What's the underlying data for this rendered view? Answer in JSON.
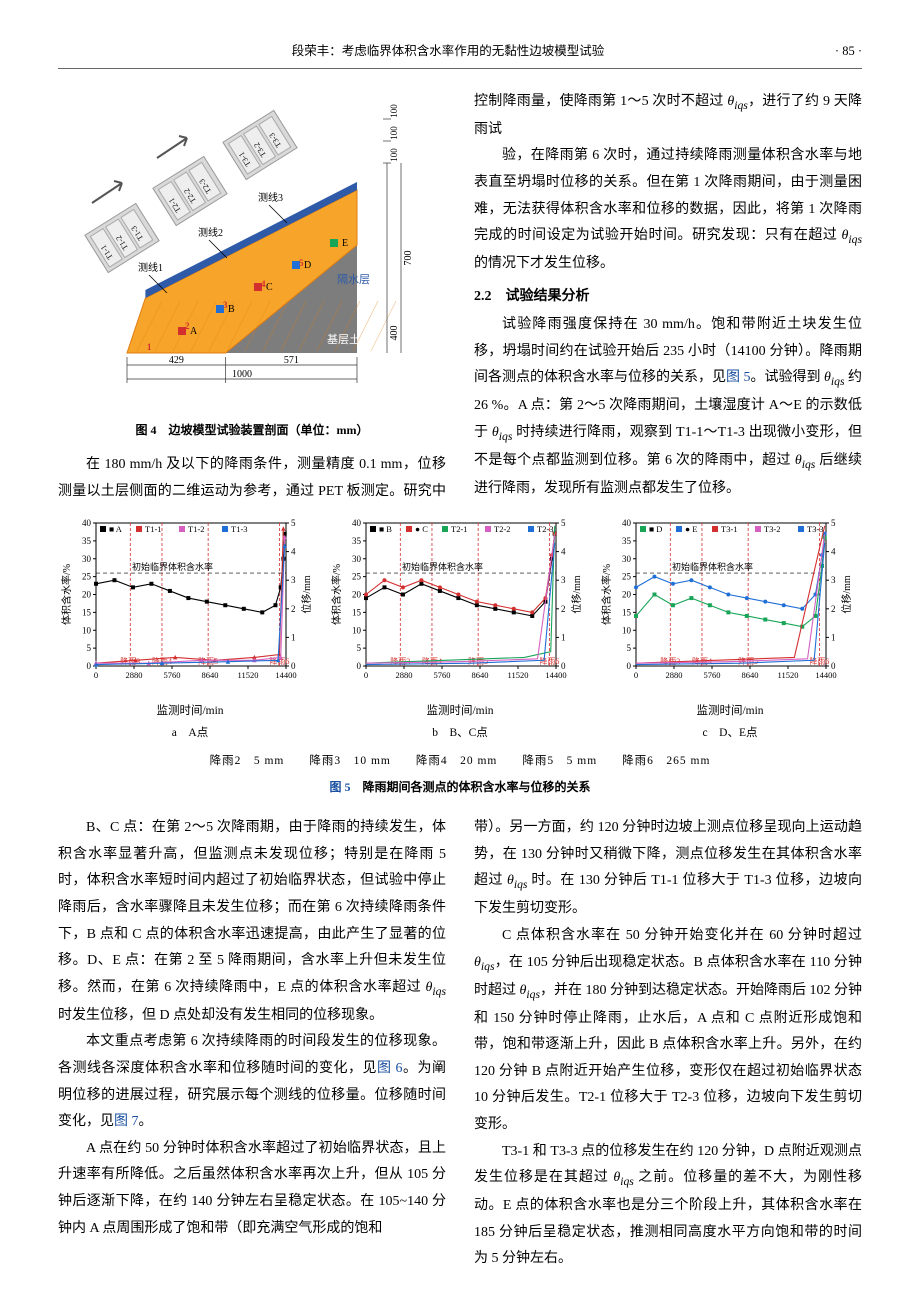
{
  "header": {
    "running_title": "段荣丰：考虑临界体积含水率作用的无黏性边坡模型试验",
    "page_num": "· 85 ·"
  },
  "fig4": {
    "caption": "图 4　边坡模型试验装置剖面（单位：mm）",
    "labels": {
      "t1": [
        "T1-1",
        "T1-2",
        "T1-3"
      ],
      "t2": [
        "T2-1",
        "T2-2",
        "T2-3"
      ],
      "t3": [
        "T3-1",
        "T3-2",
        "T3-3"
      ],
      "line1": "测线1",
      "line2": "测线2",
      "line3": "测线3",
      "layer": "隔水层",
      "base": "基层土体",
      "dim_429": "429",
      "dim_571": "571",
      "dim_1000": "1000",
      "dim_100a": "100",
      "dim_100b": "100",
      "dim_100c": "100",
      "dim_700": "700",
      "dim_400": "400",
      "pts": [
        "A",
        "B",
        "C",
        "D",
        "E"
      ],
      "nums": [
        "1",
        "2",
        "3",
        "4",
        "5"
      ]
    },
    "colors": {
      "slope_fill": "#f7a52a",
      "slope_hatch": "#e07d10",
      "base_fill": "#7d7d7d",
      "base_grad": "#5a5a5a",
      "box_fill": "#d9d9d9",
      "box_stroke": "#999",
      "imperv": "#2e5aa8",
      "arrow": "#555",
      "dim_line": "#333",
      "pt_green": "#18a558",
      "pt_blue": "#1f6fd6",
      "pt_red": "#d32f2f"
    }
  },
  "para1": "在 180 mm/h 及以下的降雨条件，测量精度 0.1 mm，位移测量以土层侧面的二维运动为参考，通过 PET 板测定。研究中控制降雨量，使降雨第 1～5 次时不超过 θ_iqs，进行了约 9 天降雨试",
  "para_r1": "验，在降雨第 6 次时，通过持续降雨测量体积含水率与地表直至坍塌时位移的关系。但在第 1 次降雨期间，由于测量困难，无法获得体积含水率和位移的数据，因此，将第 1 次降雨完成的时间设定为试验开始时间。研究发现：只有在超过 θ_iqs 的情况下才发生位移。",
  "sec22": "2.2　试验结果分析",
  "para_r2": "试验降雨强度保持在 30 mm/h。饱和带附近土块发生位移，坍塌时间约在试验开始后 235 小时（14100 分钟）。降雨期间各测点的体积含水率与位移的关系，见图 5。试验得到 θ_iqs 约 26 %。A 点：第 2～5 次降雨期间，土壤湿度计 A～E 的示数低于 θ_iqs 时持续进行降雨，观察到 T1-1～T1-3 出现微小变形，但不是每个点都监测到位移。第 6 次的降雨中，超过 θ_iqs 后继续进行降雨，发现所有监测点都发生了位移。",
  "fig5": {
    "caption": "图 5　降雨期间各测点的体积含水率与位移的关系",
    "legend_common": "降雨2　5 mm　　降雨3　10 mm　　降雨4　20 mm　　降雨5　5 mm　　降雨6　265 mm",
    "ylabel_left": "体积含水率/%",
    "ylabel_right": "位移/mm",
    "xlabel": "监测时间/min",
    "yl_ticks": [
      0,
      5,
      10,
      15,
      20,
      25,
      30,
      35,
      40
    ],
    "yr_ticks": [
      0,
      1,
      2,
      3,
      4,
      5
    ],
    "x_ticks": [
      0,
      2880,
      5760,
      8640,
      11520,
      14400
    ],
    "rain_labels": [
      "降雨3",
      "降雨4",
      "降雨5",
      "降雨6"
    ],
    "rain_x": [
      2600,
      5000,
      8500,
      13900
    ],
    "init_label": "初始临界体积含水率",
    "init_y": 26,
    "colors": {
      "axis": "#000",
      "grid": "#bbb",
      "rain_dash": "#d32f2f",
      "init_line": "#000",
      "sA": "#000",
      "sB": "#000",
      "sC": "#d32f2f",
      "sD": "#18a558",
      "sE": "#1f6fd6",
      "t1": "#d32f2f",
      "t2": "#d660c2",
      "t3": "#1f6fd6",
      "t21": "#18a558",
      "t22": "#d660c2",
      "t23": "#1f6fd6",
      "t31": "#d32f2f",
      "t32": "#d660c2",
      "t33": "#1f6fd6"
    },
    "panels": [
      {
        "sub": "a　A点",
        "legend": [
          [
            "■ A",
            "#000"
          ],
          [
            "T1-1",
            "#d32f2f"
          ],
          [
            "T1-2",
            "#d660c2"
          ],
          [
            "T1-3",
            "#1f6fd6"
          ]
        ],
        "series": [
          {
            "name": "A",
            "color": "#000",
            "marker": "sq",
            "pts": [
              [
                0,
                23
              ],
              [
                1400,
                24
              ],
              [
                2800,
                22
              ],
              [
                4200,
                23
              ],
              [
                5600,
                21
              ],
              [
                7000,
                19
              ],
              [
                8400,
                18
              ],
              [
                9800,
                17
              ],
              [
                11200,
                16
              ],
              [
                12600,
                15
              ],
              [
                13600,
                17
              ],
              [
                14000,
                22
              ],
              [
                14200,
                30
              ],
              [
                14300,
                37
              ]
            ]
          },
          {
            "name": "T1-1",
            "color": "#d32f2f",
            "marker": "tri",
            "axis": "r",
            "pts": [
              [
                0,
                0.1
              ],
              [
                3000,
                0.2
              ],
              [
                6000,
                0.3
              ],
              [
                9000,
                0.2
              ],
              [
                12000,
                0.3
              ],
              [
                13900,
                0.4
              ],
              [
                14200,
                4.8
              ]
            ]
          },
          {
            "name": "T1-2",
            "color": "#d660c2",
            "marker": "tri",
            "axis": "r",
            "pts": [
              [
                0,
                0.1
              ],
              [
                4000,
                0.1
              ],
              [
                8000,
                0.2
              ],
              [
                12000,
                0.2
              ],
              [
                14000,
                0.3
              ],
              [
                14300,
                4.5
              ]
            ]
          },
          {
            "name": "T1-3",
            "color": "#1f6fd6",
            "marker": "tri",
            "axis": "r",
            "pts": [
              [
                0,
                0.05
              ],
              [
                5000,
                0.1
              ],
              [
                10000,
                0.15
              ],
              [
                13800,
                0.2
              ],
              [
                14300,
                4.2
              ]
            ]
          }
        ]
      },
      {
        "sub": "b　B、C点",
        "legend": [
          [
            "■ B",
            "#000"
          ],
          [
            "● C",
            "#d32f2f"
          ],
          [
            "T2-1",
            "#18a558"
          ],
          [
            "T2-2",
            "#d660c2"
          ],
          [
            "T2-3",
            "#1f6fd6"
          ]
        ],
        "series": [
          {
            "name": "B",
            "color": "#000",
            "marker": "sq",
            "pts": [
              [
                0,
                19
              ],
              [
                1400,
                22
              ],
              [
                2800,
                20
              ],
              [
                4200,
                23
              ],
              [
                5600,
                21
              ],
              [
                7000,
                19
              ],
              [
                8400,
                17
              ],
              [
                9800,
                16
              ],
              [
                11200,
                15
              ],
              [
                12600,
                14
              ],
              [
                13600,
                18
              ],
              [
                14100,
                30
              ],
              [
                14300,
                37
              ]
            ]
          },
          {
            "name": "C",
            "color": "#d32f2f",
            "marker": "ci",
            "pts": [
              [
                0,
                20
              ],
              [
                1400,
                24
              ],
              [
                2800,
                22
              ],
              [
                4200,
                24
              ],
              [
                5600,
                22
              ],
              [
                7000,
                20
              ],
              [
                8400,
                18
              ],
              [
                9800,
                17
              ],
              [
                11200,
                16
              ],
              [
                12600,
                15
              ],
              [
                13600,
                19
              ],
              [
                14100,
                31
              ],
              [
                14300,
                37
              ]
            ]
          },
          {
            "name": "T2-1",
            "color": "#18a558",
            "axis": "r",
            "pts": [
              [
                0,
                0.1
              ],
              [
                6000,
                0.2
              ],
              [
                12000,
                0.3
              ],
              [
                14000,
                0.5
              ],
              [
                14300,
                4.9
              ]
            ]
          },
          {
            "name": "T2-2",
            "color": "#d660c2",
            "axis": "r",
            "pts": [
              [
                0,
                0.1
              ],
              [
                7000,
                0.15
              ],
              [
                13000,
                0.25
              ],
              [
                14300,
                4.6
              ]
            ]
          },
          {
            "name": "T2-3",
            "color": "#1f6fd6",
            "axis": "r",
            "pts": [
              [
                0,
                0.05
              ],
              [
                8000,
                0.1
              ],
              [
                13500,
                0.2
              ],
              [
                14300,
                4.3
              ]
            ]
          }
        ]
      },
      {
        "sub": "c　D、E点",
        "legend": [
          [
            "■ D",
            "#18a558"
          ],
          [
            "● E",
            "#1f6fd6"
          ],
          [
            "T3-1",
            "#d32f2f"
          ],
          [
            "T3-2",
            "#d660c2"
          ],
          [
            "T3-3",
            "#1f6fd6"
          ]
        ],
        "series": [
          {
            "name": "D",
            "color": "#18a558",
            "marker": "sq",
            "pts": [
              [
                0,
                14
              ],
              [
                1400,
                20
              ],
              [
                2800,
                17
              ],
              [
                4200,
                19
              ],
              [
                5600,
                17
              ],
              [
                7000,
                15
              ],
              [
                8400,
                14
              ],
              [
                9800,
                13
              ],
              [
                11200,
                12
              ],
              [
                12600,
                11
              ],
              [
                13600,
                14
              ],
              [
                14100,
                28
              ],
              [
                14300,
                36
              ]
            ]
          },
          {
            "name": "E",
            "color": "#1f6fd6",
            "marker": "ci",
            "pts": [
              [
                0,
                22
              ],
              [
                1400,
                25
              ],
              [
                2800,
                23
              ],
              [
                4200,
                24
              ],
              [
                5600,
                22
              ],
              [
                7000,
                20
              ],
              [
                8400,
                19
              ],
              [
                9800,
                18
              ],
              [
                11200,
                17
              ],
              [
                12600,
                16
              ],
              [
                13600,
                20
              ],
              [
                14100,
                31
              ],
              [
                14300,
                37
              ]
            ]
          },
          {
            "name": "T3-1",
            "color": "#d32f2f",
            "axis": "r",
            "pts": [
              [
                0,
                0.1
              ],
              [
                6000,
                0.2
              ],
              [
                12000,
                0.3
              ],
              [
                14300,
                4.9
              ]
            ]
          },
          {
            "name": "T3-2",
            "color": "#d660c2",
            "axis": "r",
            "pts": [
              [
                0,
                0.1
              ],
              [
                7000,
                0.15
              ],
              [
                13000,
                0.25
              ],
              [
                14300,
                4.6
              ]
            ]
          },
          {
            "name": "T3-3",
            "color": "#1f6fd6",
            "axis": "r",
            "pts": [
              [
                0,
                0.05
              ],
              [
                8000,
                0.1
              ],
              [
                13500,
                0.2
              ],
              [
                14300,
                4.3
              ]
            ]
          }
        ]
      }
    ]
  },
  "para_l2": "B、C 点：在第 2～5 次降雨期，由于降雨的持续发生，体积含水率显著升高，但监测点未发现位移；特别是在降雨 5 时，体积含水率短时间内超过了初始临界状态，但试验中停止降雨后，含水率骤降且未发生位移；而在第 6 次持续降雨条件下，B 点和 C 点的体积含水率迅速提高，由此产生了显著的位移。D、E 点：在第 2 至 5 降雨期间，含水率上升但未发生位移。然而，在第 6 次持续降雨中，E 点的体积含水率超过 θ_iqs 时发生位移，但 D 点处却没有发生相同的位移现象。",
  "para_l3": "本文重点考虑第 6 次持续降雨的时间段发生的位移现象。各测线各深度体积含水率和位移随时间的变化，见图 6。为阐明位移的进展过程，研究展示每个测线的位移量。位移随时间变化，见图 7。",
  "para_l4": "A 点在约 50 分钟时体积含水率超过了初始临界状态，且上升速率有所降低。之后虽然体积含水率再次上升，但从 105 分钟后逐渐下降，在约 140 分钟左右呈稳定状态。在 105~140 分钟内 A 点周围形成了饱和带（即充满空气形成的饱和",
  "para_r3": "带）。另一方面，约 120 分钟时边坡上测点位移呈现向上运动趋势，在 130 分钟时又稍微下降，测点位移发生在其体积含水率超过 θ_iqs 时。在 130 分钟后 T1-1 位移大于 T1-3 位移，边坡向下发生剪切变形。",
  "para_r4": "C 点体积含水率在 50 分钟开始变化并在 60 分钟时超过 θ_iqs，在 105 分钟后出现稳定状态。B 点体积含水率在 110 分钟时超过 θ_iqs，并在 180 分钟到达稳定状态。开始降雨后 102 分钟和 150 分钟时停止降雨，止水后，A 点和 C 点附近形成饱和带，饱和带逐渐上升，因此 B 点体积含水率上升。另外，在约 120 分钟 B 点附近开始产生位移，变形仅在超过初始临界状态 10 分钟后发生。T2-1 位移大于 T2-3 位移，边坡向下发生剪切变形。",
  "para_r5": "T3-1 和 T3-3 点的位移发生在约 120 分钟，D 点附近观测点发生位移是在其超过 θ_iqs 之前。位移量的差不大，为刚性移动。E 点的体积含水率也是分三个阶段上升，其体积含水率在 185 分钟后呈稳定状态，推测相同高度水平方向饱和带的时间为 5 分钟左右。"
}
